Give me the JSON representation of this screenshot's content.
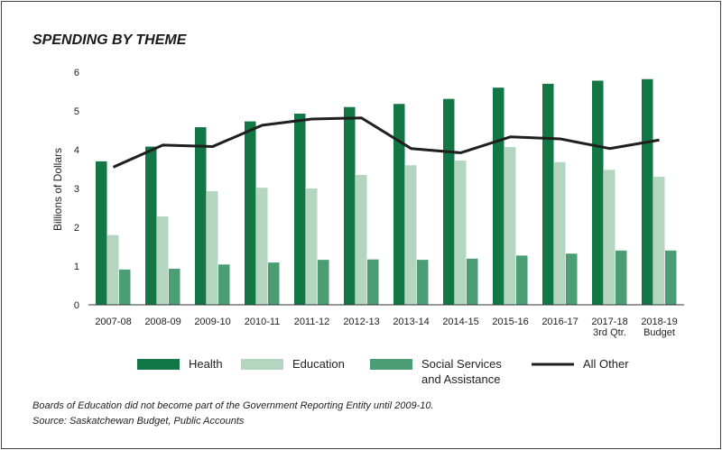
{
  "chart_data": {
    "type": "bar",
    "title": "SPENDING BY THEME",
    "xlabel": "",
    "ylabel": "Billions of Dollars",
    "ylim": [
      0,
      6
    ],
    "yticks": [
      "0",
      "1",
      "2",
      "3",
      "4",
      "5",
      "6"
    ],
    "grid": false,
    "legend_position": "bottom",
    "categories": [
      [
        "2007-08"
      ],
      [
        "2008-09"
      ],
      [
        "2009-10"
      ],
      [
        "2010-11"
      ],
      [
        "2011-12"
      ],
      [
        "2012-13"
      ],
      [
        "2013-14"
      ],
      [
        "2014-15"
      ],
      [
        "2015-16"
      ],
      [
        "2016-17"
      ],
      [
        "2017-18",
        "3rd Qtr."
      ],
      [
        "2018-19",
        "Budget"
      ]
    ],
    "series": [
      {
        "name": "Health",
        "kind": "bar",
        "color": "#137745",
        "values": [
          3.7,
          4.08,
          4.58,
          4.73,
          4.93,
          5.1,
          5.18,
          5.31,
          5.6,
          5.7,
          5.78,
          5.82
        ]
      },
      {
        "name": "Education",
        "kind": "bar",
        "color": "#b4d6c0",
        "values": [
          1.8,
          2.28,
          2.93,
          3.02,
          3.0,
          3.35,
          3.6,
          3.72,
          4.07,
          3.68,
          3.48,
          3.3
        ]
      },
      {
        "name": "Social Services and Assistance",
        "legend_lines": [
          "Social Services",
          "and Assistance"
        ],
        "kind": "bar",
        "color": "#4b9d74",
        "values": [
          0.91,
          0.93,
          1.04,
          1.09,
          1.16,
          1.17,
          1.16,
          1.19,
          1.27,
          1.32,
          1.4,
          1.4
        ]
      },
      {
        "name": "All Other",
        "kind": "line",
        "color": "#1f1f1f",
        "values": [
          3.55,
          4.12,
          4.08,
          4.63,
          4.79,
          4.82,
          4.03,
          3.92,
          4.33,
          4.28,
          4.03,
          4.25
        ]
      }
    ],
    "footnotes": [
      "Boards of Education did not become part of the Government Reporting Entity until 2009-10.",
      "Source: Saskatchewan Budget, Public Accounts"
    ]
  }
}
